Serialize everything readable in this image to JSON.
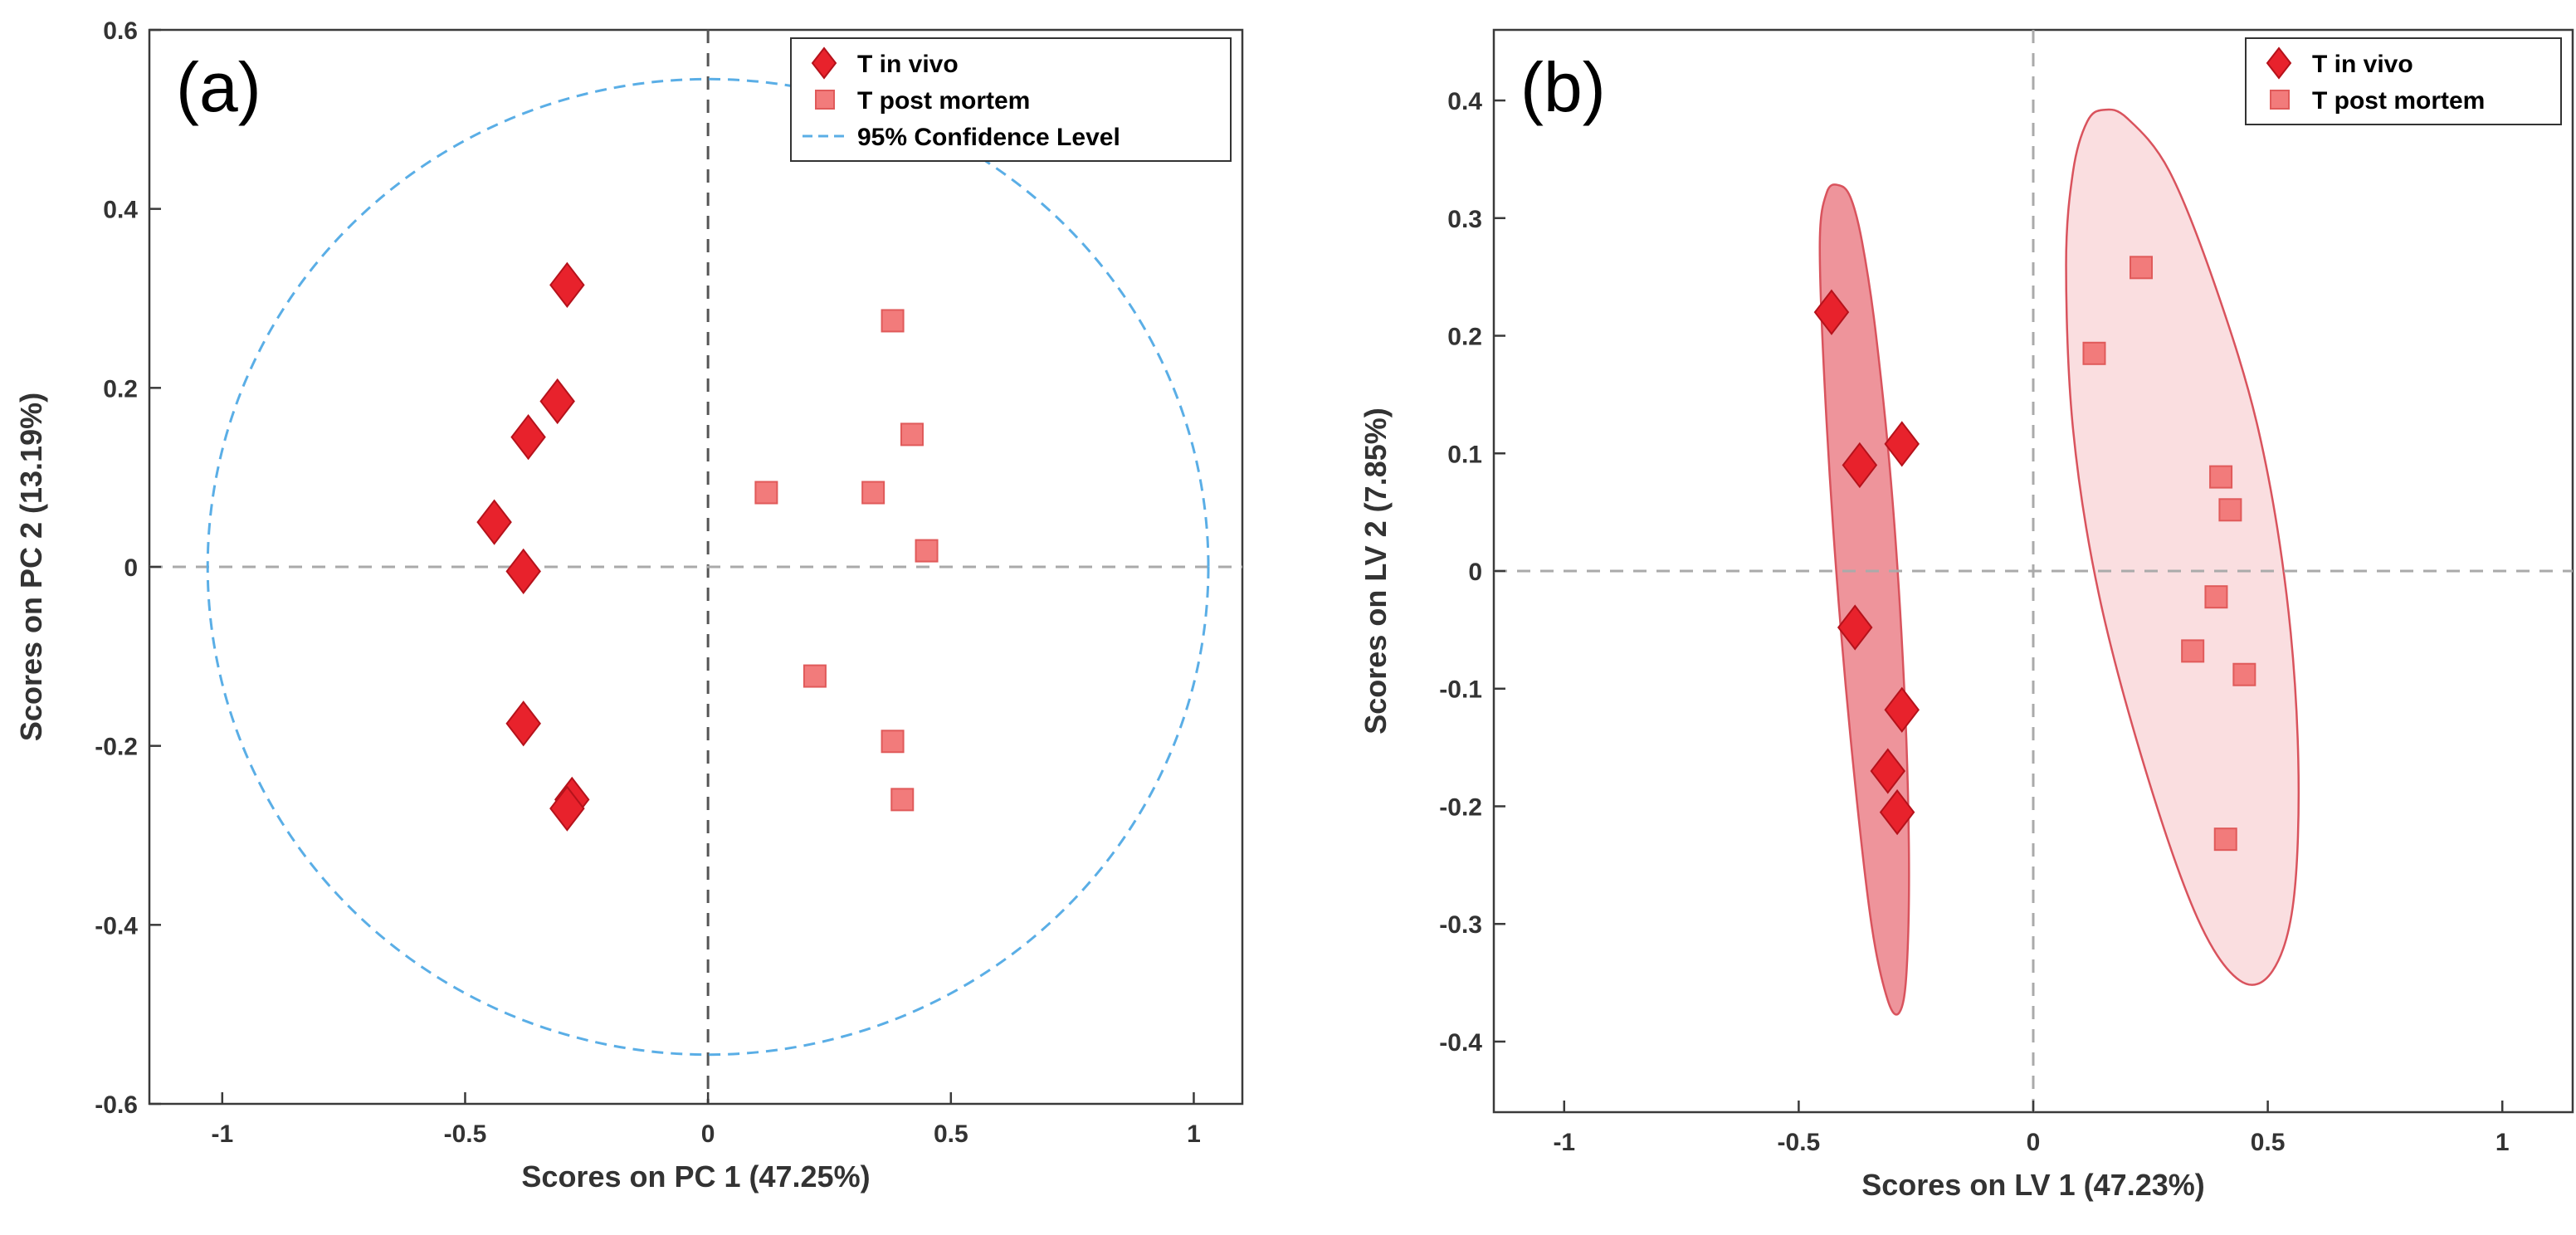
{
  "chart_data": [
    {
      "type": "scatter",
      "panel_label": "(a)",
      "xlabel": "Scores on PC 1 (47.25%)",
      "ylabel": "Scores on PC 2 (13.19%)",
      "xlim": [
        -1.15,
        1.1
      ],
      "ylim": [
        -0.6,
        0.6
      ],
      "xticks": [
        -1,
        -0.5,
        0,
        0.5,
        1
      ],
      "xtick_labels": [
        "-1",
        "-0.5",
        "0",
        "0.5",
        "1"
      ],
      "yticks": [
        -0.6,
        -0.4,
        -0.2,
        0,
        0.2,
        0.4,
        0.6
      ],
      "ytick_labels": [
        "-0.6",
        "-0.4",
        "-0.2",
        "0",
        "0.2",
        "0.4",
        "0.6"
      ],
      "grid": false,
      "legend_position": "top-right",
      "series": [
        {
          "name": "T in vivo",
          "marker": "diamond",
          "color": "#e8222c",
          "points": [
            [
              -0.29,
              0.315
            ],
            [
              -0.31,
              0.185
            ],
            [
              -0.37,
              0.145
            ],
            [
              -0.44,
              0.05
            ],
            [
              -0.38,
              -0.005
            ],
            [
              -0.38,
              -0.175
            ],
            [
              -0.28,
              -0.26
            ],
            [
              -0.29,
              -0.27
            ]
          ]
        },
        {
          "name": "T post mortem",
          "marker": "square",
          "color": "#f27b7b",
          "points": [
            [
              0.38,
              0.275
            ],
            [
              0.42,
              0.148
            ],
            [
              0.12,
              0.083
            ],
            [
              0.34,
              0.083
            ],
            [
              0.45,
              0.018
            ],
            [
              0.22,
              -0.122
            ],
            [
              0.38,
              -0.195
            ],
            [
              0.4,
              -0.26
            ]
          ]
        }
      ],
      "confidence_ellipse": {
        "name": "95% Confidence Level",
        "center": [
          0,
          0
        ],
        "radius_x": 1.03,
        "radius_y": 0.545,
        "color": "#5aaee6"
      }
    },
    {
      "type": "scatter",
      "panel_label": "(b)",
      "xlabel": "Scores on LV 1 (47.23%)",
      "ylabel": "Scores on LV 2 (7.85%)",
      "xlim": [
        -1.15,
        1.15
      ],
      "ylim": [
        -0.46,
        0.46
      ],
      "xticks": [
        -1,
        -0.5,
        0,
        0.5,
        1
      ],
      "xtick_labels": [
        "-1",
        "-0.5",
        "0",
        "0.5",
        "1"
      ],
      "yticks": [
        -0.4,
        -0.3,
        -0.2,
        -0.1,
        0,
        0.1,
        0.2,
        0.3,
        0.4
      ],
      "ytick_labels": [
        "-0.4",
        "-0.3",
        "-0.2",
        "-0.1",
        "0",
        "0.1",
        "0.2",
        "0.3",
        "0.4"
      ],
      "grid": false,
      "legend_position": "top-right",
      "series": [
        {
          "name": "T in vivo",
          "marker": "diamond",
          "color": "#e8222c",
          "points": [
            [
              -0.43,
              0.22
            ],
            [
              -0.28,
              0.108
            ],
            [
              -0.37,
              0.09
            ],
            [
              -0.38,
              -0.048
            ],
            [
              -0.28,
              -0.118
            ],
            [
              -0.31,
              -0.17
            ],
            [
              -0.29,
              -0.205
            ]
          ]
        },
        {
          "name": "T post mortem",
          "marker": "square",
          "color": "#f27b7b",
          "points": [
            [
              0.23,
              0.258
            ],
            [
              0.13,
              0.185
            ],
            [
              0.4,
              0.08
            ],
            [
              0.42,
              0.052
            ],
            [
              0.39,
              -0.022
            ],
            [
              0.34,
              -0.068
            ],
            [
              0.45,
              -0.088
            ],
            [
              0.41,
              -0.228
            ]
          ]
        }
      ],
      "group_ellipses": [
        {
          "group": "T in vivo",
          "fill": "#e8707a",
          "points": [
            [
              -0.415,
              0.328
            ],
            [
              -0.39,
              0.318
            ],
            [
              -0.365,
              0.28
            ],
            [
              -0.335,
              0.2
            ],
            [
              -0.3,
              0.06
            ],
            [
              -0.275,
              -0.1
            ],
            [
              -0.265,
              -0.24
            ],
            [
              -0.27,
              -0.34
            ],
            [
              -0.285,
              -0.375
            ],
            [
              -0.31,
              -0.365
            ],
            [
              -0.345,
              -0.3
            ],
            [
              -0.385,
              -0.16
            ],
            [
              -0.42,
              0
            ],
            [
              -0.445,
              0.16
            ],
            [
              -0.455,
              0.28
            ],
            [
              -0.44,
              0.322
            ]
          ]
        },
        {
          "group": "T post mortem",
          "fill": "#f7cdd0",
          "points": [
            [
              0.15,
              0.392
            ],
            [
              0.115,
              0.382
            ],
            [
              0.085,
              0.34
            ],
            [
              0.07,
              0.26
            ],
            [
              0.085,
              0.12
            ],
            [
              0.14,
              -0.02
            ],
            [
              0.24,
              -0.17
            ],
            [
              0.35,
              -0.295
            ],
            [
              0.44,
              -0.348
            ],
            [
              0.51,
              -0.34
            ],
            [
              0.555,
              -0.28
            ],
            [
              0.565,
              -0.16
            ],
            [
              0.54,
              -0.02
            ],
            [
              0.48,
              0.12
            ],
            [
              0.39,
              0.24
            ],
            [
              0.29,
              0.34
            ],
            [
              0.2,
              0.385
            ]
          ]
        }
      ]
    }
  ]
}
